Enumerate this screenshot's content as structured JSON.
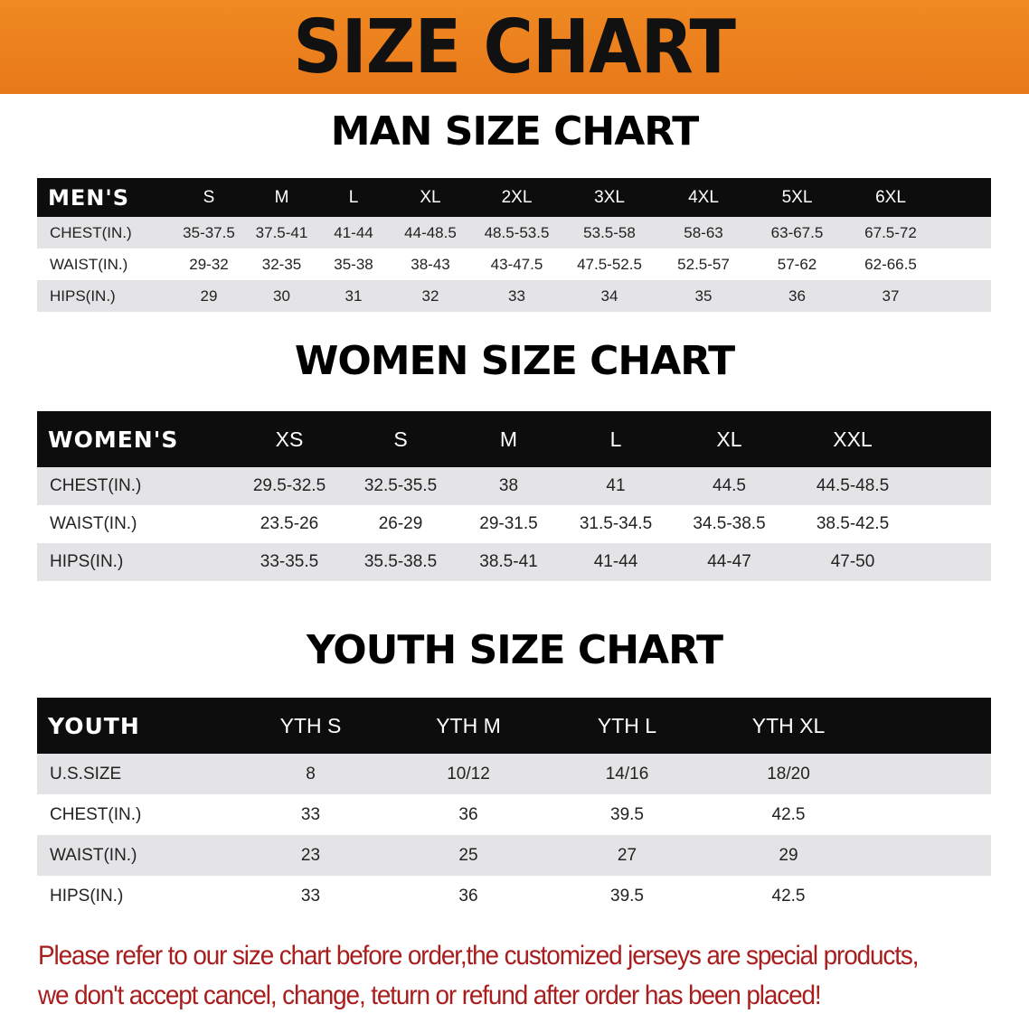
{
  "banner_title": "SIZE CHART",
  "men": {
    "title": "MAN SIZE CHART",
    "header": [
      "MEN'S",
      "S",
      "M",
      "L",
      "XL",
      "2XL",
      "3XL",
      "4XL",
      "5XL",
      "6XL"
    ],
    "rows": [
      [
        "CHEST(IN.)",
        "35-37.5",
        "37.5-41",
        "41-44",
        "44-48.5",
        "48.5-53.5",
        "53.5-58",
        "58-63",
        "63-67.5",
        "67.5-72"
      ],
      [
        "WAIST(IN.)",
        "29-32",
        "32-35",
        "35-38",
        "38-43",
        "43-47.5",
        "47.5-52.5",
        "52.5-57",
        "57-62",
        "62-66.5"
      ],
      [
        "HIPS(IN.)",
        "29",
        "30",
        "31",
        "32",
        "33",
        "34",
        "35",
        "36",
        "37"
      ]
    ]
  },
  "women": {
    "title": "WOMEN SIZE CHART",
    "header": [
      "WOMEN'S",
      "XS",
      "S",
      "M",
      "L",
      "XL",
      "XXL"
    ],
    "rows": [
      [
        "CHEST(IN.)",
        "29.5-32.5",
        "32.5-35.5",
        "38",
        "41",
        "44.5",
        "44.5-48.5"
      ],
      [
        "WAIST(IN.)",
        "23.5-26",
        "26-29",
        "29-31.5",
        "31.5-34.5",
        "34.5-38.5",
        "38.5-42.5"
      ],
      [
        "HIPS(IN.)",
        "33-35.5",
        "35.5-38.5",
        "38.5-41",
        "41-44",
        "44-47",
        "47-50"
      ]
    ]
  },
  "youth": {
    "title": "YOUTH SIZE CHART",
    "header": [
      "YOUTH",
      "YTH S",
      "YTH M",
      "YTH L",
      "YTH XL"
    ],
    "rows": [
      [
        "U.S.SIZE",
        "8",
        "10/12",
        "14/16",
        "18/20"
      ],
      [
        "CHEST(IN.)",
        "33",
        "36",
        "39.5",
        "42.5"
      ],
      [
        "WAIST(IN.)",
        "23",
        "25",
        "27",
        "29"
      ],
      [
        "HIPS(IN.)",
        "33",
        "36",
        "39.5",
        "42.5"
      ]
    ]
  },
  "notice": {
    "line1": "Please refer to our size chart before order,the customized jerseys are special products,",
    "line2": "we don't accept cancel, change, teturn or refund after order has been placed!"
  },
  "colors": {
    "banner": "#e8781a",
    "header_bg": "#0d0d0d",
    "row_gray": "#e4e4e6",
    "notice": "#a81d1d"
  }
}
